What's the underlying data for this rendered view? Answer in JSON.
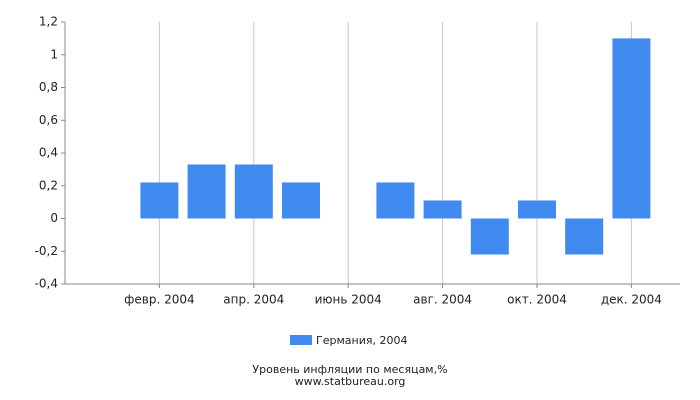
{
  "chart_data": {
    "type": "bar",
    "categories": [
      null,
      "февр. 2004",
      null,
      "апр. 2004",
      null,
      "июнь 2004",
      null,
      "авг. 2004",
      null,
      "окт. 2004",
      null,
      "дек. 2004"
    ],
    "series": [
      {
        "name": "Германия, 2004",
        "color": "#418af0",
        "values": [
          0,
          0.22,
          0.33,
          0.33,
          0.22,
          0,
          0.22,
          0.11,
          -0.22,
          0.11,
          -0.22,
          1.1
        ]
      }
    ],
    "ylim": [
      -0.4,
      1.2
    ],
    "yticks": [
      {
        "value": -0.4,
        "label": "-0,4"
      },
      {
        "value": -0.2,
        "label": "-0,2"
      },
      0,
      {
        "value": 0.2,
        "label": "0,2"
      },
      {
        "value": 0.4,
        "label": "0,4"
      },
      {
        "value": 0.6,
        "label": "0,6"
      },
      {
        "value": 0.8,
        "label": "0,8"
      },
      1,
      {
        "value": 1.2,
        "label": "1,2"
      }
    ],
    "grid": true,
    "subtitle": "Уровень инфляции по месяцам,%",
    "source": "www.statbureau.org"
  }
}
